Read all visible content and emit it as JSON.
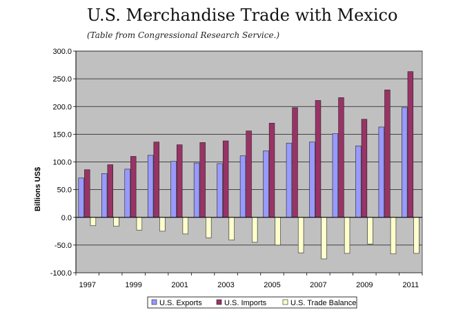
{
  "title": "U.S. Merchandise Trade with Mexico",
  "subtitle": "(Table from Congressional Research Service.)",
  "chart_data": {
    "type": "bar",
    "ylabel": "Billions US$",
    "xlabel": "",
    "ylim": [
      -100,
      300
    ],
    "ytick_step": 50,
    "grid": true,
    "legend_position": "bottom",
    "categories": [
      "1997",
      "1998",
      "1999",
      "2000",
      "2001",
      "2002",
      "2003",
      "2004",
      "2005",
      "2006",
      "2007",
      "2008",
      "2009",
      "2010",
      "2011"
    ],
    "xtick_labels": [
      "1997",
      "1999",
      "2001",
      "2003",
      "2005",
      "2007",
      "2009",
      "2011"
    ],
    "ytick_labels": [
      "300.0",
      "250.0",
      "200.0",
      "150.0",
      "100.0",
      "50.0",
      "0.0",
      "-50.0",
      "-100.0"
    ],
    "series": [
      {
        "name": "U.S. Exports",
        "color": "#9999ff",
        "values": [
          71,
          79,
          87,
          112,
          101,
          98,
          97,
          111,
          120,
          134,
          136,
          151,
          129,
          163,
          198
        ]
      },
      {
        "name": "U.S. Imports",
        "color": "#993366",
        "values": [
          86,
          95,
          110,
          136,
          131,
          135,
          138,
          156,
          170,
          198,
          211,
          216,
          177,
          230,
          263
        ]
      },
      {
        "name": "U.S. Trade Balance",
        "color": "#ffffcc",
        "values": [
          -15,
          -16,
          -23,
          -25,
          -30,
          -37,
          -41,
          -45,
          -50,
          -64,
          -75,
          -65,
          -48,
          -66,
          -65
        ]
      }
    ]
  }
}
